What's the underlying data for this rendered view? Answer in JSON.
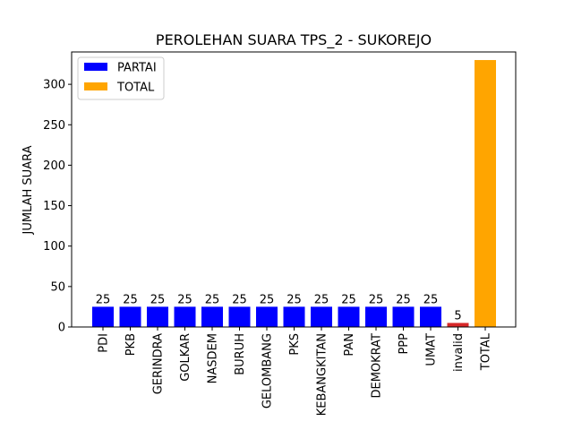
{
  "chart_data": {
    "type": "bar",
    "title": "PEROLEHAN SUARA TPS_2 - SUKOREJO",
    "xlabel": "",
    "ylabel": "JUMLAH SUARA",
    "ylim": [
      0,
      340
    ],
    "yticks": [
      0,
      50,
      100,
      150,
      200,
      250,
      300
    ],
    "grid": false,
    "legend_position": "top-left",
    "categories": [
      "PDI",
      "PKB",
      "GERINDRA",
      "GOLKAR",
      "NASDEM",
      "BURUH",
      "GELOMBANG",
      "PKS",
      "KEBANGKITAN",
      "PAN",
      "DEMOKRAT",
      "PPP",
      "UMAT",
      "invalid",
      "TOTAL"
    ],
    "values": [
      25,
      25,
      25,
      25,
      25,
      25,
      25,
      25,
      25,
      25,
      25,
      25,
      25,
      5,
      330
    ],
    "value_labels": [
      "25",
      "25",
      "25",
      "25",
      "25",
      "25",
      "25",
      "25",
      "25",
      "25",
      "25",
      "25",
      "25",
      "5",
      ""
    ],
    "bar_colors": [
      "#0000ff",
      "#0000ff",
      "#0000ff",
      "#0000ff",
      "#0000ff",
      "#0000ff",
      "#0000ff",
      "#0000ff",
      "#0000ff",
      "#0000ff",
      "#0000ff",
      "#0000ff",
      "#0000ff",
      "#d62728",
      "#ffa500"
    ],
    "legend": [
      {
        "name": "PARTAI",
        "color": "#0000ff"
      },
      {
        "name": "TOTAL",
        "color": "#ffa500"
      }
    ]
  }
}
